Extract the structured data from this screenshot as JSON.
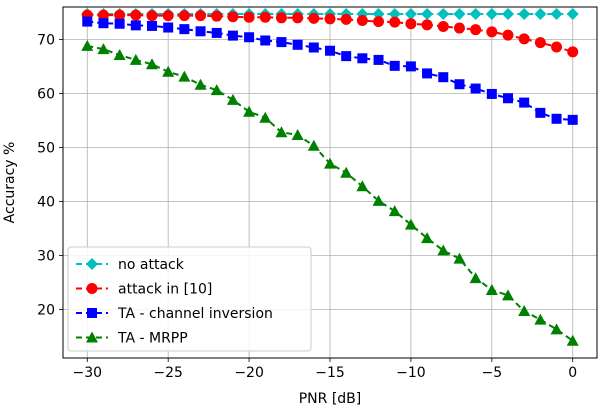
{
  "chart_data": {
    "type": "line",
    "title": "",
    "xlabel": "PNR [dB]",
    "ylabel": "Accuracy %",
    "xlim": [
      -31.5,
      1.5
    ],
    "ylim": [
      11,
      76
    ],
    "xticks": [
      -30,
      -25,
      -20,
      -15,
      -10,
      -5,
      0
    ],
    "xtick_labels": [
      "−30",
      "−25",
      "−20",
      "−15",
      "−10",
      "−5",
      "0"
    ],
    "yticks": [
      20,
      30,
      40,
      50,
      60,
      70
    ],
    "ytick_labels": [
      "20",
      "30",
      "40",
      "50",
      "60",
      "70"
    ],
    "grid": true,
    "legend_position": "lower-left",
    "x": [
      -30,
      -29,
      -28,
      -27,
      -26,
      -25,
      -24,
      -23,
      -22,
      -21,
      -20,
      -19,
      -18,
      -17,
      -16,
      -15,
      -14,
      -13,
      -12,
      -11,
      -10,
      -9,
      -8,
      -7,
      -6,
      -5,
      -4,
      -3,
      -2,
      -1,
      0
    ],
    "series": [
      {
        "name": "no attack",
        "color": "#00bfbf",
        "marker": "diamond",
        "dash": "6,4",
        "values": [
          74.7,
          74.7,
          74.7,
          74.7,
          74.7,
          74.7,
          74.7,
          74.7,
          74.7,
          74.7,
          74.7,
          74.7,
          74.7,
          74.7,
          74.7,
          74.7,
          74.7,
          74.7,
          74.7,
          74.7,
          74.7,
          74.7,
          74.7,
          74.7,
          74.7,
          74.7,
          74.7,
          74.7,
          74.7,
          74.7,
          74.7
        ]
      },
      {
        "name": "attack in [10]",
        "color": "#ff0000",
        "marker": "circle",
        "dash": "6,4",
        "values": [
          74.5,
          74.5,
          74.5,
          74.5,
          74.4,
          74.4,
          74.4,
          74.4,
          74.3,
          74.2,
          74.1,
          74.1,
          74.0,
          74.0,
          73.9,
          73.8,
          73.7,
          73.5,
          73.3,
          73.2,
          72.9,
          72.7,
          72.4,
          72.1,
          71.8,
          71.4,
          70.8,
          70.1,
          69.4,
          68.6,
          67.7
        ]
      },
      {
        "name": "TA - channel inversion",
        "color": "#0000ff",
        "marker": "square",
        "dash": "6,4",
        "values": [
          73.3,
          73.0,
          72.9,
          72.6,
          72.5,
          72.2,
          71.9,
          71.5,
          71.2,
          70.7,
          70.4,
          69.8,
          69.5,
          69.0,
          68.5,
          67.9,
          66.9,
          66.5,
          66.2,
          65.1,
          65.0,
          63.7,
          63.0,
          61.7,
          60.9,
          59.9,
          59.1,
          58.3,
          56.4,
          55.3,
          55.1
        ]
      },
      {
        "name": "TA - MRPP",
        "color": "#008000",
        "marker": "triangle",
        "dash": "6,4",
        "values": [
          68.8,
          68.2,
          67.1,
          66.2,
          65.4,
          64.0,
          63.1,
          61.6,
          60.6,
          58.8,
          56.6,
          55.5,
          52.8,
          52.3,
          50.3,
          47.0,
          45.3,
          42.8,
          40.1,
          38.2,
          35.7,
          33.2,
          30.9,
          29.4,
          25.8,
          23.6,
          22.6,
          19.7,
          18.1,
          16.3,
          14.2
        ]
      }
    ]
  }
}
